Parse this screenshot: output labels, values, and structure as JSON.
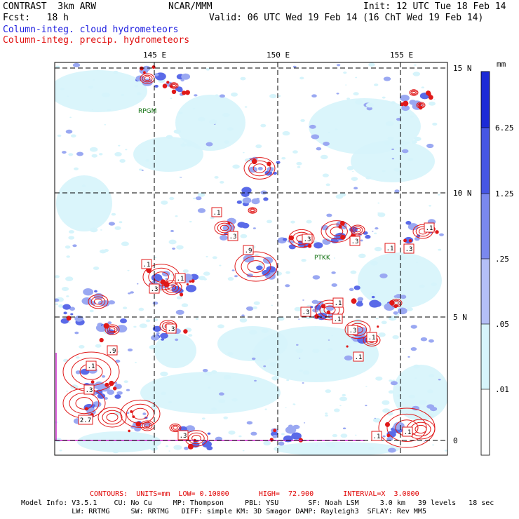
{
  "header": {
    "model": "CONTRAST  3km ARW",
    "center": "NCAR/MMM",
    "init": "Init: 12 UTC Tue 18 Feb 14",
    "fcst": "Fcst:   18 h",
    "valid": "Valid: 06 UTC Wed 19 Feb 14 (16 ChT Wed 19 Feb 14)",
    "legend_cloud": "Column-integ. cloud hydrometeors",
    "legend_precip": "Column-integ. precip. hydrometeors"
  },
  "colors": {
    "cloud_light": "#d6f4fb",
    "cloud_mid": "#9aa8f2",
    "cloud_dark": "#5a6ae8",
    "cloud_deep": "#1c2ad6",
    "precip_contour": "#e01818",
    "border_magenta": "#d020d0"
  },
  "map": {
    "lon_labels": [
      "145 E",
      "150 E",
      "155 E"
    ],
    "lat_labels": [
      "15 N",
      "10 N",
      "5 N",
      "0"
    ],
    "stations": [
      "RPGM",
      "PTKK"
    ],
    "contour_labels": [
      ".1",
      ".1",
      ".3",
      ".9",
      ".3",
      ".1",
      ".3",
      ".1",
      ".3",
      ".1",
      ".3",
      ".3",
      ".3",
      ".1",
      ".1",
      ".3",
      ".1",
      ".1",
      ".1",
      ".3",
      "2.7",
      ".3",
      ".1",
      ".1",
      ".9"
    ]
  },
  "colorbar": {
    "unit": "mm",
    "labels": [
      "6.25",
      "1.25",
      ".25",
      ".05",
      ".01"
    ]
  },
  "footer": {
    "contours": "CONTOURS:  UNITS=mm  LOW= 0.10000       HIGH=  72.900       INTERVAL=X  3.0000",
    "line1": "Model Info: V3.5.1    CU: No Cu     MP: Thompson     PBL: YSU       SF: Noah LSM     3.0 km   39 levels   18 sec",
    "line2": "            LW: RRTMG     SW: RRTMG   DIFF: simple KM: 3D Smagor DAMP: Rayleigh3  SFLAY: Rev MM5"
  }
}
